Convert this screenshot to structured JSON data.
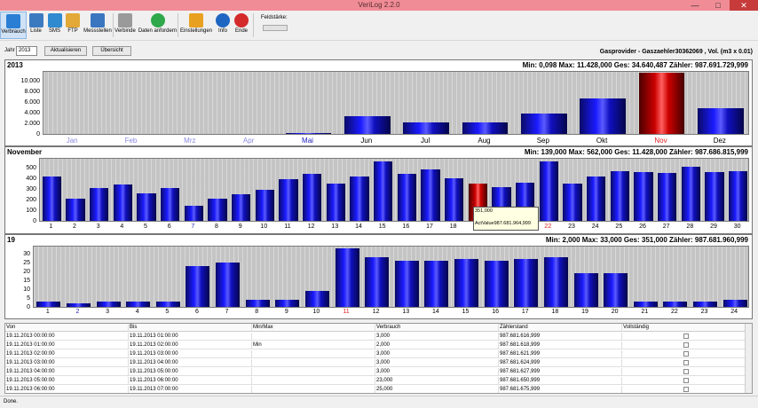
{
  "window": {
    "title": "VeriLog 2.2.0",
    "minimize": "—",
    "maximize": "□",
    "close": "✕"
  },
  "toolbar": {
    "items": [
      {
        "label": "Verbrauch",
        "icon": "chart-bar-icon",
        "color": "#2a7fd4"
      },
      {
        "label": "Liste",
        "icon": "list-icon",
        "color": "#3c7ac0"
      },
      {
        "label": "SMS",
        "icon": "sms-icon",
        "color": "#2f8ad0"
      },
      {
        "label": "FTP",
        "icon": "folder-icon",
        "color": "#e2a938"
      },
      {
        "label": "Messstellen",
        "icon": "meter-icon",
        "color": "#3a76c0"
      },
      {
        "label": "Verbinde",
        "icon": "connect-icon",
        "color": "#9a9a9a"
      },
      {
        "label": "Daten anfordern",
        "icon": "download-icon",
        "color": "#2ea84a"
      },
      {
        "label": "Einstellungen",
        "icon": "gear-icon",
        "color": "#e8a020"
      },
      {
        "label": "Info",
        "icon": "info-icon",
        "color": "#1f66c2"
      },
      {
        "label": "Ende",
        "icon": "power-icon",
        "color": "#d42a2a"
      }
    ],
    "feldstaerke_label": "Feldstärke:"
  },
  "selector": {
    "year_label": "Jahr",
    "year_value": "2013",
    "refresh_label": "Aktualisieren",
    "overview_label": "Übersicht"
  },
  "provider": "Gasprovider - Gaszaehler30362069 , Vol. (m3 x 0.01)",
  "tooltip": {
    "value": "351,000",
    "actual": "ActValue987.681.964,999"
  },
  "chart_data": [
    {
      "type": "bar",
      "title": "2013",
      "stats": "Min: 0,098 Max: 11.428,000 Ges: 34.640,487 Zähler: 987.691.729,999",
      "categories": [
        "Jan",
        "Feb",
        "Mrz",
        "Apr",
        "Mai",
        "Jun",
        "Jul",
        "Aug",
        "Sep",
        "Okt",
        "Nov",
        "Dez"
      ],
      "values": [
        0,
        0,
        0,
        0,
        0.098,
        3300,
        2100,
        2150,
        3800,
        6700,
        11428,
        4900
      ],
      "ylim": [
        0,
        12000
      ],
      "yticks": [
        "0",
        "2.000",
        "4.000",
        "6.000",
        "8.000",
        "10.000"
      ],
      "highlight": 10,
      "label_colors": [
        "#8a8ae0",
        "#8a8ae0",
        "#8a8ae0",
        "#8a8ae0",
        "#2020c0",
        "#000",
        "#000",
        "#000",
        "#000",
        "#000",
        "#e02020",
        "#000"
      ]
    },
    {
      "type": "bar",
      "title": "November",
      "stats": "Min: 139,000 Max: 562,000 Ges: 11.428,000 Zähler: 987.686.815,999",
      "categories": [
        "1",
        "2",
        "3",
        "4",
        "5",
        "6",
        "7",
        "8",
        "9",
        "10",
        "11",
        "12",
        "13",
        "14",
        "15",
        "16",
        "17",
        "18",
        "19",
        "20",
        "21",
        "22",
        "23",
        "24",
        "25",
        "26",
        "27",
        "28",
        "29",
        "30"
      ],
      "values": [
        420,
        210,
        310,
        340,
        260,
        310,
        139,
        210,
        250,
        290,
        390,
        440,
        350,
        420,
        562,
        440,
        480,
        400,
        351,
        320,
        360,
        562,
        350,
        420,
        470,
        460,
        450,
        510,
        460,
        470
      ],
      "ylim": [
        0,
        600
      ],
      "yticks": [
        "0",
        "100",
        "200",
        "300",
        "400",
        "500"
      ],
      "highlight": 18,
      "label_colors": [
        "#000",
        "#000",
        "#000",
        "#000",
        "#000",
        "#000",
        "#2020c0",
        "#000",
        "#000",
        "#000",
        "#000",
        "#000",
        "#000",
        "#000",
        "#000",
        "#000",
        "#000",
        "#000",
        "#000",
        "#000",
        "#000",
        "#e02020",
        "#000",
        "#000",
        "#000",
        "#000",
        "#000",
        "#000",
        "#000",
        "#000"
      ]
    },
    {
      "type": "bar",
      "title": "19",
      "stats": "Min: 2,000 Max: 33,000 Ges: 351,000 Zähler: 987.681.960,999",
      "categories": [
        "1",
        "2",
        "3",
        "4",
        "5",
        "6",
        "7",
        "8",
        "9",
        "10",
        "11",
        "12",
        "13",
        "14",
        "15",
        "16",
        "17",
        "18",
        "19",
        "20",
        "21",
        "22",
        "23",
        "24"
      ],
      "values": [
        3,
        2,
        3,
        3,
        3,
        23,
        25,
        4,
        4,
        9,
        33,
        28,
        26,
        26,
        27,
        26,
        27,
        28,
        19,
        19,
        3,
        3,
        3,
        4
      ],
      "ylim": [
        0,
        35
      ],
      "yticks": [
        "0",
        "5",
        "10",
        "15",
        "20",
        "25",
        "30"
      ],
      "highlight": -1,
      "label_colors": [
        "#000",
        "#2020c0",
        "#000",
        "#000",
        "#000",
        "#000",
        "#000",
        "#000",
        "#000",
        "#000",
        "#e02020",
        "#000",
        "#000",
        "#000",
        "#000",
        "#000",
        "#000",
        "#000",
        "#000",
        "#000",
        "#000",
        "#000",
        "#000",
        "#000"
      ]
    }
  ],
  "table": {
    "headers": [
      "Von",
      "Bis",
      "Min/Max",
      "Verbrauch",
      "Zählerstand",
      "Vollständig"
    ],
    "rows": [
      [
        "19.11.2013 00:00:00",
        "19.11.2013 01:00:00",
        "",
        "3,000",
        "987.681.616,999"
      ],
      [
        "19.11.2013 01:00:00",
        "19.11.2013 02:00:00",
        "Min",
        "2,000",
        "987.681.618,999"
      ],
      [
        "19.11.2013 02:00:00",
        "19.11.2013 03:00:00",
        "",
        "3,000",
        "987.681.621,999"
      ],
      [
        "19.11.2013 03:00:00",
        "19.11.2013 04:00:00",
        "",
        "3,000",
        "987.681.624,999"
      ],
      [
        "19.11.2013 04:00:00",
        "19.11.2013 05:00:00",
        "",
        "3,000",
        "987.681.627,999"
      ],
      [
        "19.11.2013 05:00:00",
        "19.11.2013 06:00:00",
        "",
        "23,000",
        "987.681.650,999"
      ],
      [
        "19.11.2013 06:00:00",
        "19.11.2013 07:00:00",
        "",
        "25,000",
        "987.681.675,999"
      ]
    ]
  },
  "status": "Done."
}
